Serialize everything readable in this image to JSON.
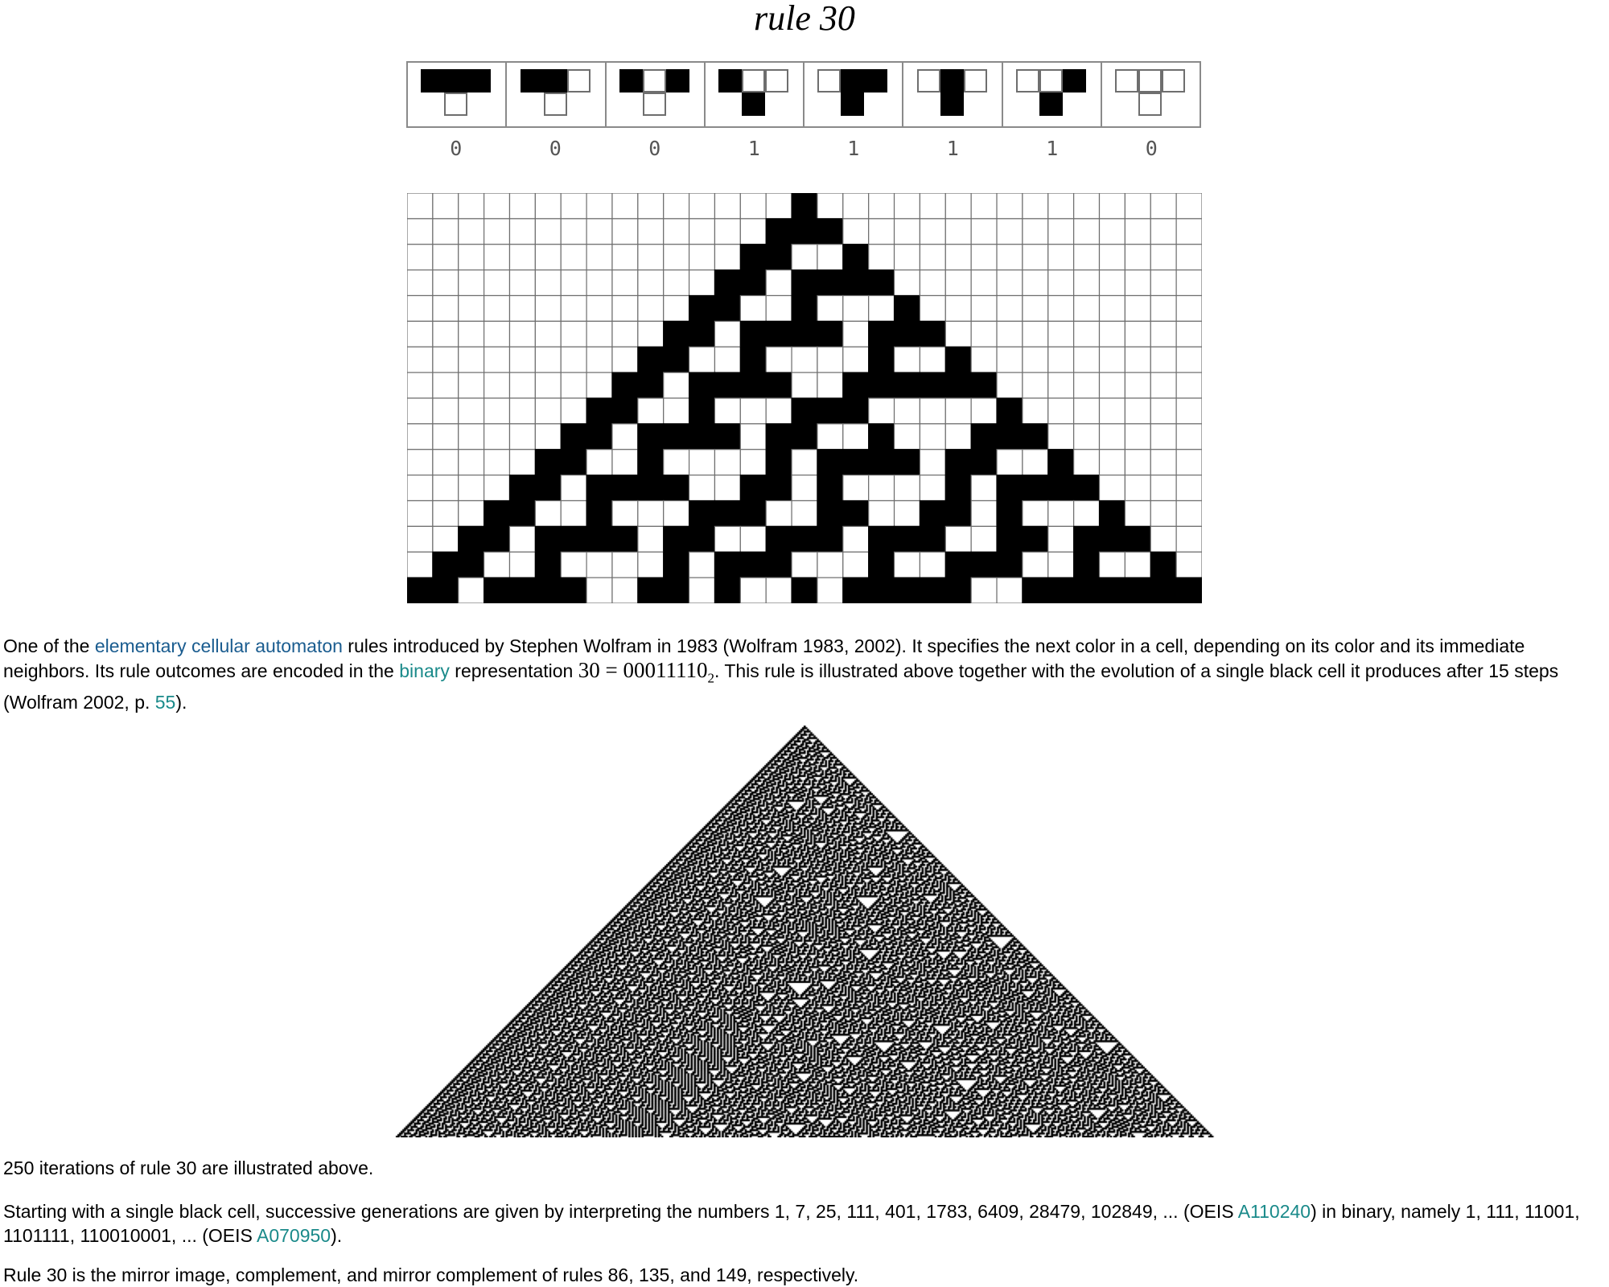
{
  "title": "rule 30",
  "rule_cases": [
    {
      "top": [
        1,
        1,
        1
      ],
      "result": 0,
      "label": "0"
    },
    {
      "top": [
        1,
        1,
        0
      ],
      "result": 0,
      "label": "0"
    },
    {
      "top": [
        1,
        0,
        1
      ],
      "result": 0,
      "label": "0"
    },
    {
      "top": [
        1,
        0,
        0
      ],
      "result": 1,
      "label": "1"
    },
    {
      "top": [
        0,
        1,
        1
      ],
      "result": 1,
      "label": "1"
    },
    {
      "top": [
        0,
        1,
        0
      ],
      "result": 1,
      "label": "1"
    },
    {
      "top": [
        0,
        0,
        1
      ],
      "result": 1,
      "label": "1"
    },
    {
      "top": [
        0,
        0,
        0
      ],
      "result": 0,
      "label": "0"
    }
  ],
  "small_automaton": {
    "rule": 30,
    "steps": 15,
    "columns": 31
  },
  "big_automaton": {
    "rule": 30,
    "iterations": 250
  },
  "paragraph1": {
    "t1": "One of the ",
    "link_eca": "elementary cellular automaton",
    "t2": " rules introduced by Stephen Wolfram in 1983 (Wolfram 1983, 2002). It specifies the next color in a cell, depending on its color and its immediate neighbors. Its rule outcomes are encoded in the ",
    "link_binary": "binary",
    "t3": " representation ",
    "math_lhs": "30 = 00011110",
    "math_sub": "2",
    "t4": ". This rule is illustrated above together with the evolution of a single black cell it produces after 15 steps (Wolfram 2002, p. ",
    "link_page": "55",
    "t5": ")."
  },
  "paragraph2": "250 iterations of rule 30 are illustrated above.",
  "paragraph3": {
    "t1": "Starting with a single black cell, successive generations are given by interpreting the numbers 1, 7, 25, 111, 401, 1783, 6409, 28479, 102849, ... (OEIS ",
    "link_a110240": "A110240",
    "t2": ") in binary, namely 1, 111, 11001, 1101111, 110010001, ... (OEIS ",
    "link_a070950": "A070950",
    "t3": ")."
  },
  "paragraph4": "Rule 30 is the mirror image, complement, and mirror complement of rules 86, 135, and 149, respectively.",
  "colors": {
    "link_blue": "#1a5c8f",
    "link_teal": "#1a8a8a",
    "cell_on": "#000000",
    "grid_line": "#6e6e6e"
  }
}
